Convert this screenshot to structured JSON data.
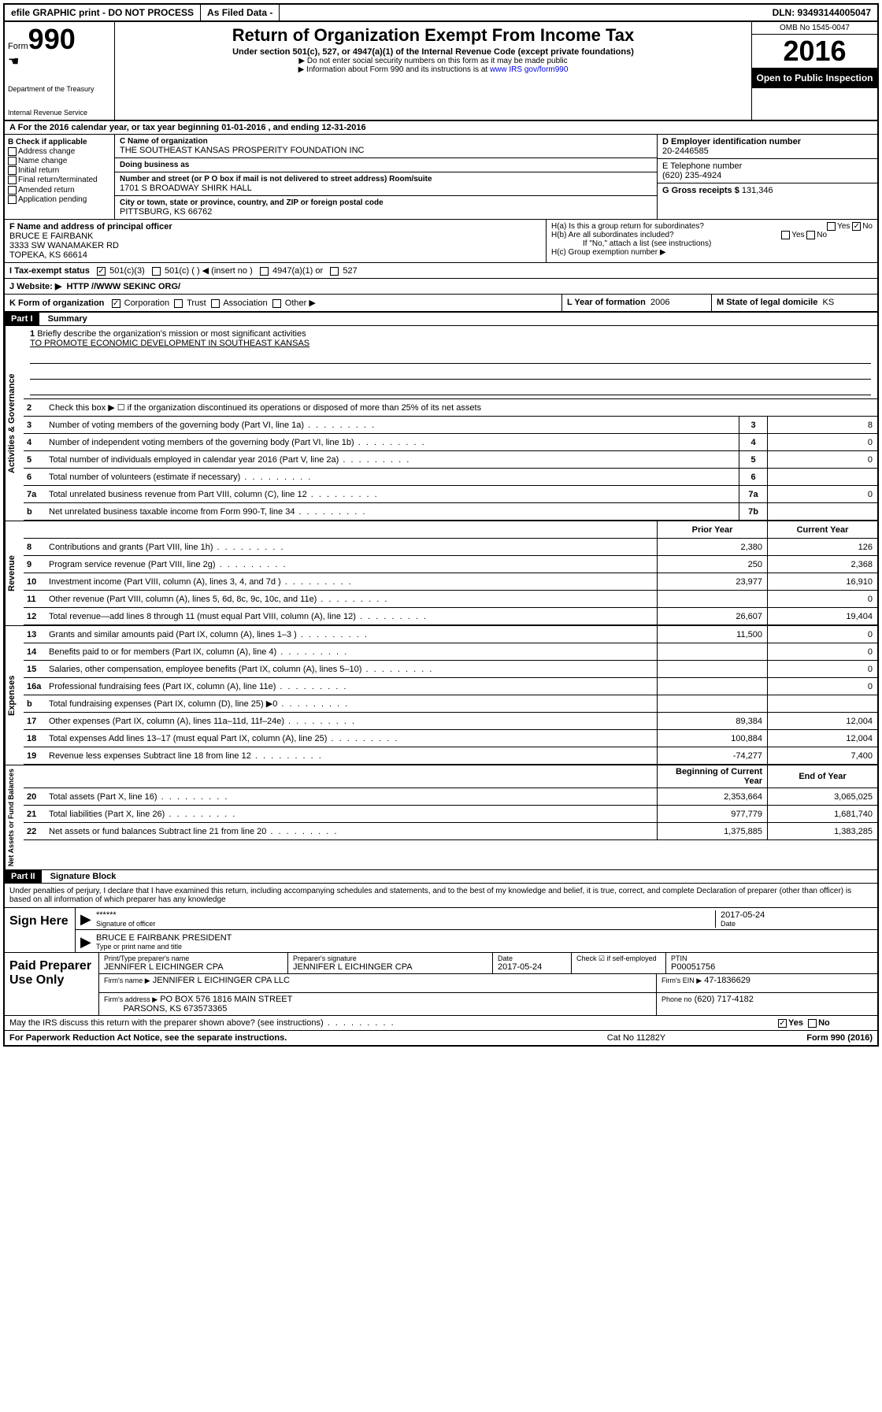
{
  "topbar": {
    "efile": "efile GRAPHIC print - DO NOT PROCESS",
    "asfiled": "As Filed Data -",
    "dln": "DLN: 93493144005047"
  },
  "header": {
    "form_prefix": "Form",
    "form_number": "990",
    "dept1": "Department of the Treasury",
    "dept2": "Internal Revenue Service",
    "title": "Return of Organization Exempt From Income Tax",
    "subtitle": "Under section 501(c), 527, or 4947(a)(1) of the Internal Revenue Code (except private foundations)",
    "note1": "▶ Do not enter social security numbers on this form as it may be made public",
    "note2_pre": "▶ Information about Form 990 and its instructions is at ",
    "note2_link": "www IRS gov/form990",
    "omb": "OMB No 1545-0047",
    "year": "2016",
    "inspection": "Open to Public Inspection"
  },
  "sectionA": "A  For the 2016 calendar year, or tax year beginning 01-01-2016  , and ending 12-31-2016",
  "boxB": {
    "hdr": "B Check if applicable",
    "o1": "Address change",
    "o2": "Name change",
    "o3": "Initial return",
    "o4": "Final return/terminated",
    "o5": "Amended return",
    "o6": "Application pending"
  },
  "boxC": {
    "name_lbl": "C Name of organization",
    "name": "THE SOUTHEAST KANSAS PROSPERITY FOUNDATION INC",
    "dba_lbl": "Doing business as",
    "addr_lbl": "Number and street (or P O  box if mail is not delivered to street address)   Room/suite",
    "addr": "1701 S BROADWAY SHIRK HALL",
    "city_lbl": "City or town, state or province, country, and ZIP or foreign postal code",
    "city": "PITTSBURG, KS  66762"
  },
  "boxD": {
    "lbl": "D Employer identification number",
    "val": "20-2446585"
  },
  "boxE": {
    "lbl": "E Telephone number",
    "val": "(620) 235-4924"
  },
  "boxG": {
    "lbl": "G Gross receipts $",
    "val": "131,346"
  },
  "boxF": {
    "lbl": "F  Name and address of principal officer",
    "name": "BRUCE E FAIRBANK",
    "addr": "3333 SW WANAMAKER RD",
    "city": "TOPEKA, KS  66614"
  },
  "boxH": {
    "ha": "H(a)  Is this a group return for subordinates?",
    "hb": "H(b)  Are all subordinates included?",
    "hb_note": "If \"No,\" attach a list  (see instructions)",
    "hc": "H(c)  Group exemption number ▶",
    "yes": "Yes",
    "no": "No"
  },
  "boxI": {
    "lbl": "I   Tax-exempt status",
    "opt1": "501(c)(3)",
    "opt2": "501(c) (  ) ◀ (insert no )",
    "opt3": "4947(a)(1) or",
    "opt4": "527"
  },
  "boxJ": {
    "lbl": "J   Website: ▶",
    "val": "HTTP //WWW SEKINC ORG/"
  },
  "boxK": {
    "lbl": "K Form of organization",
    "o1": "Corporation",
    "o2": "Trust",
    "o3": "Association",
    "o4": "Other ▶"
  },
  "boxL": {
    "lbl": "L Year of formation",
    "val": "2006"
  },
  "boxM": {
    "lbl": "M State of legal domicile",
    "val": "KS"
  },
  "part1": {
    "hdr": "Part I",
    "title": "Summary"
  },
  "mission": {
    "num": "1",
    "lbl": "Briefly describe the organization's mission or most significant activities",
    "txt": "TO PROMOTE ECONOMIC DEVELOPMENT IN SOUTHEAST KANSAS"
  },
  "line2": "Check this box ▶ ☐ if the organization discontinued its operations or disposed of more than 25% of its net assets",
  "govLines": [
    {
      "n": "3",
      "t": "Number of voting members of the governing body (Part VI, line 1a)",
      "k": "3",
      "v": "8"
    },
    {
      "n": "4",
      "t": "Number of independent voting members of the governing body (Part VI, line 1b)",
      "k": "4",
      "v": "0"
    },
    {
      "n": "5",
      "t": "Total number of individuals employed in calendar year 2016 (Part V, line 2a)",
      "k": "5",
      "v": "0"
    },
    {
      "n": "6",
      "t": "Total number of volunteers (estimate if necessary)",
      "k": "6",
      "v": ""
    },
    {
      "n": "7a",
      "t": "Total unrelated business revenue from Part VIII, column (C), line 12",
      "k": "7a",
      "v": "0"
    },
    {
      "n": "b",
      "t": "Net unrelated business taxable income from Form 990-T, line 34",
      "k": "7b",
      "v": ""
    }
  ],
  "revHdr": {
    "prior": "Prior Year",
    "current": "Current Year"
  },
  "revLines": [
    {
      "n": "8",
      "t": "Contributions and grants (Part VIII, line 1h)",
      "p": "2,380",
      "c": "126"
    },
    {
      "n": "9",
      "t": "Program service revenue (Part VIII, line 2g)",
      "p": "250",
      "c": "2,368"
    },
    {
      "n": "10",
      "t": "Investment income (Part VIII, column (A), lines 3, 4, and 7d )",
      "p": "23,977",
      "c": "16,910"
    },
    {
      "n": "11",
      "t": "Other revenue (Part VIII, column (A), lines 5, 6d, 8c, 9c, 10c, and 11e)",
      "p": "",
      "c": "0"
    },
    {
      "n": "12",
      "t": "Total revenue—add lines 8 through 11 (must equal Part VIII, column (A), line 12)",
      "p": "26,607",
      "c": "19,404"
    }
  ],
  "expLines": [
    {
      "n": "13",
      "t": "Grants and similar amounts paid (Part IX, column (A), lines 1–3 )",
      "p": "11,500",
      "c": "0"
    },
    {
      "n": "14",
      "t": "Benefits paid to or for members (Part IX, column (A), line 4)",
      "p": "",
      "c": "0"
    },
    {
      "n": "15",
      "t": "Salaries, other compensation, employee benefits (Part IX, column (A), lines 5–10)",
      "p": "",
      "c": "0"
    },
    {
      "n": "16a",
      "t": "Professional fundraising fees (Part IX, column (A), line 11e)",
      "p": "",
      "c": "0"
    },
    {
      "n": "b",
      "t": "Total fundraising expenses (Part IX, column (D), line 25) ▶0",
      "p": "",
      "c": ""
    },
    {
      "n": "17",
      "t": "Other expenses (Part IX, column (A), lines 11a–11d, 11f–24e)",
      "p": "89,384",
      "c": "12,004"
    },
    {
      "n": "18",
      "t": "Total expenses  Add lines 13–17 (must equal Part IX, column (A), line 25)",
      "p": "100,884",
      "c": "12,004"
    },
    {
      "n": "19",
      "t": "Revenue less expenses  Subtract line 18 from line 12",
      "p": "-74,277",
      "c": "7,400"
    }
  ],
  "netHdr": {
    "b": "Beginning of Current Year",
    "e": "End of Year"
  },
  "netLines": [
    {
      "n": "20",
      "t": "Total assets (Part X, line 16)",
      "p": "2,353,664",
      "c": "3,065,025"
    },
    {
      "n": "21",
      "t": "Total liabilities (Part X, line 26)",
      "p": "977,779",
      "c": "1,681,740"
    },
    {
      "n": "22",
      "t": "Net assets or fund balances  Subtract line 21 from line 20",
      "p": "1,375,885",
      "c": "1,383,285"
    }
  ],
  "part2": {
    "hdr": "Part II",
    "title": "Signature Block"
  },
  "perjury": "Under penalties of perjury, I declare that I have examined this return, including accompanying schedules and statements, and to the best of my knowledge and belief, it is true, correct, and complete  Declaration of preparer (other than officer) is based on all information of which preparer has any knowledge",
  "sign": {
    "here": "Sign Here",
    "stars": "******",
    "sig_lbl": "Signature of officer",
    "date_lbl": "Date",
    "date_val": "2017-05-24",
    "name": "BRUCE E FAIRBANK PRESIDENT",
    "name_lbl": "Type or print name and title"
  },
  "paid": {
    "hdr": "Paid Preparer Use Only",
    "r1": {
      "l1": "Print/Type preparer's name",
      "v1": "JENNIFER L EICHINGER CPA",
      "l2": "Preparer's signature",
      "v2": "JENNIFER L EICHINGER CPA",
      "l3": "Date",
      "v3": "2017-05-24",
      "l4": "Check ☑ if self-employed",
      "l5": "PTIN",
      "v5": "P00051756"
    },
    "r2": {
      "l": "Firm's name   ▶",
      "v": "JENNIFER L EICHINGER CPA LLC",
      "l2": "Firm's EIN ▶",
      "v2": "47-1836629"
    },
    "r3": {
      "l": "Firm's address ▶",
      "v": "PO BOX 576 1816 MAIN STREET",
      "v2": "PARSONS, KS  673573365",
      "l2": "Phone no",
      "v3": "(620) 717-4182"
    }
  },
  "discuss": {
    "q": "May the IRS discuss this return with the preparer shown above? (see instructions)",
    "yes": "Yes",
    "no": "No"
  },
  "bottom": {
    "l": "For Paperwork Reduction Act Notice, see the separate instructions.",
    "c": "Cat  No  11282Y",
    "r": "Form 990 (2016)"
  },
  "vtabs": {
    "gov": "Activities & Governance",
    "rev": "Revenue",
    "exp": "Expenses",
    "net": "Net Assets or Fund Balances"
  }
}
